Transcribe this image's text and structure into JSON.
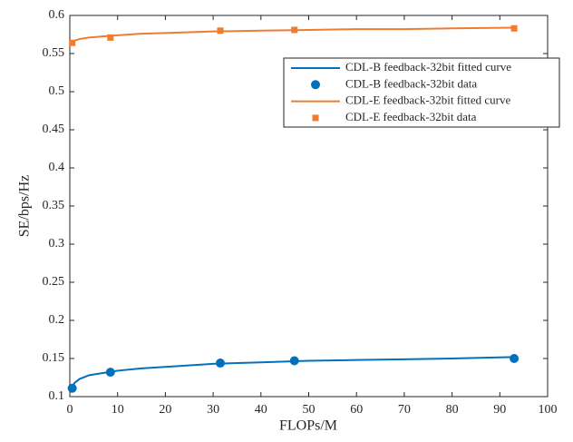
{
  "chart_data": {
    "type": "line",
    "xlabel": "FLOPs/M",
    "ylabel": "SE/bps/Hz",
    "xlim": [
      0,
      100
    ],
    "xticks": [
      0,
      10,
      20,
      30,
      40,
      50,
      60,
      70,
      80,
      90,
      100
    ],
    "ylim": [
      0.1,
      0.6
    ],
    "yticks": [
      0.1,
      0.15,
      0.2,
      0.25,
      0.3,
      0.35,
      0.4,
      0.45,
      0.5,
      0.55,
      0.6
    ],
    "legend": "upper right",
    "series": [
      {
        "name": "CDL-B feedback-32bit fitted curve",
        "color": "#0072BD",
        "mode": "line",
        "x": [
          0.3,
          1,
          2,
          4,
          6,
          8,
          10,
          15,
          20,
          30,
          40,
          50,
          60,
          70,
          80,
          93
        ],
        "values": [
          0.11,
          0.118,
          0.123,
          0.128,
          0.13,
          0.132,
          0.134,
          0.137,
          0.139,
          0.143,
          0.145,
          0.147,
          0.148,
          0.149,
          0.15,
          0.152
        ]
      },
      {
        "name": "CDL-B feedback-32bit data",
        "color": "#0072BD",
        "mode": "markers",
        "marker": "circle",
        "x": [
          0.5,
          8.5,
          31.5,
          47,
          93
        ],
        "values": [
          0.111,
          0.132,
          0.144,
          0.147,
          0.15
        ]
      },
      {
        "name": "CDL-E feedback-32bit fitted curve",
        "color": "#ED7D31",
        "mode": "line",
        "x": [
          0.3,
          1,
          2,
          4,
          6,
          8,
          10,
          15,
          20,
          30,
          40,
          50,
          60,
          70,
          80,
          93
        ],
        "values": [
          0.563,
          0.567,
          0.569,
          0.571,
          0.572,
          0.573,
          0.574,
          0.576,
          0.577,
          0.579,
          0.58,
          0.581,
          0.582,
          0.582,
          0.583,
          0.584
        ]
      },
      {
        "name": "CDL-E feedback-32bit data",
        "color": "#ED7D31",
        "mode": "markers",
        "marker": "square",
        "x": [
          0.5,
          8.5,
          31.5,
          47,
          93
        ],
        "values": [
          0.564,
          0.571,
          0.58,
          0.581,
          0.583
        ]
      }
    ]
  }
}
